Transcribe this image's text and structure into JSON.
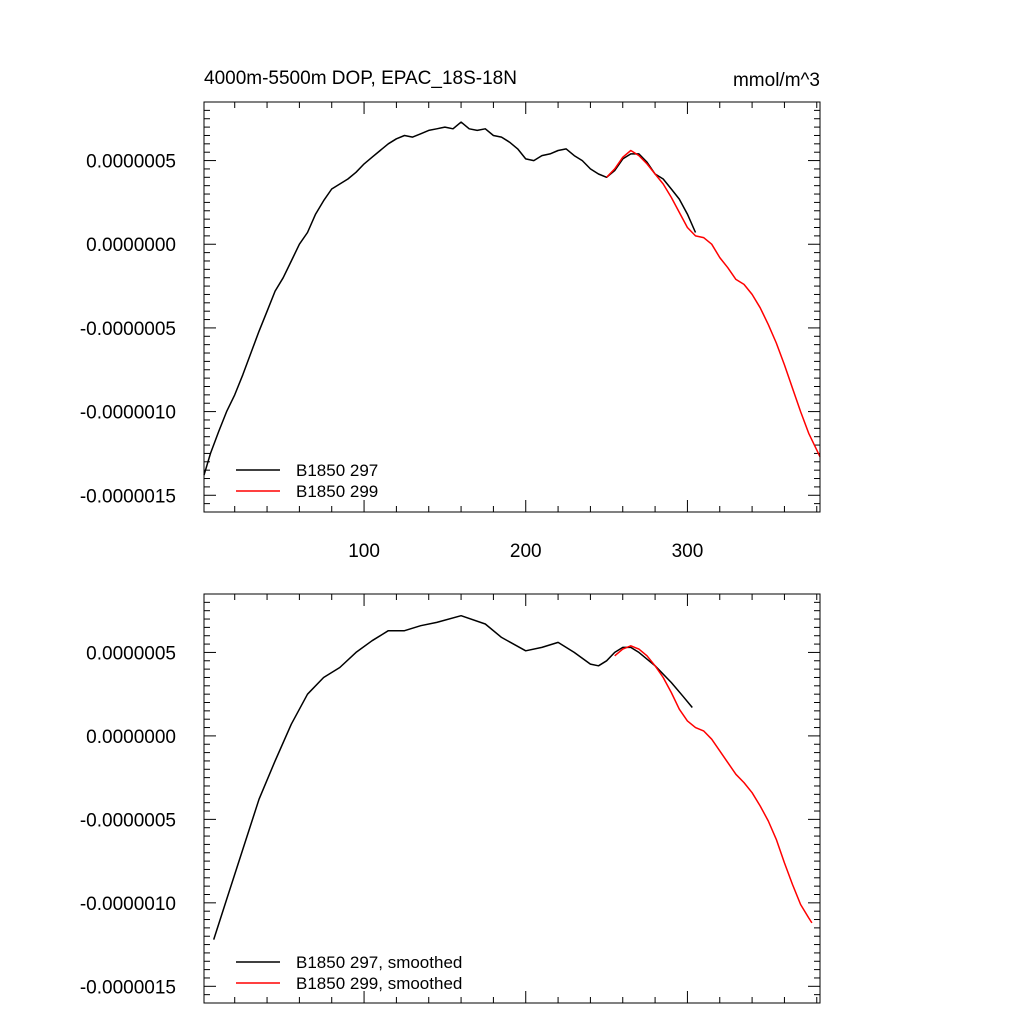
{
  "chart_data": [
    {
      "type": "line",
      "title": "4000m-5500m DOP, EPAC_18S-18N",
      "units": "mmol/m^3",
      "xlim": [
        1,
        382
      ],
      "ylim": [
        -1.6e-06,
        8.5e-07
      ],
      "xticks": [
        100,
        200,
        300
      ],
      "xtick_labels": [
        "100",
        "200",
        "300"
      ],
      "yticks": [
        5e-07,
        0,
        -5e-07,
        -1e-06,
        -1.5e-06
      ],
      "ytick_labels": [
        "0.0000005",
        "0.0000000",
        "-0.0000005",
        "-0.0000010",
        "-0.0000015"
      ],
      "legend_position": "bottom-left",
      "series": [
        {
          "name": "B1850 297",
          "color": "#000000",
          "x": [
            1,
            5,
            10,
            15,
            20,
            25,
            30,
            35,
            40,
            45,
            50,
            55,
            60,
            65,
            70,
            75,
            80,
            85,
            90,
            95,
            100,
            105,
            110,
            115,
            120,
            125,
            130,
            135,
            140,
            145,
            150,
            155,
            160,
            165,
            170,
            175,
            180,
            185,
            190,
            195,
            200,
            205,
            210,
            215,
            220,
            225,
            230,
            235,
            240,
            245,
            250,
            255,
            260,
            265,
            270,
            275,
            280,
            285,
            290,
            295,
            300,
            305
          ],
          "y": [
            -1.38e-06,
            -1.25e-06,
            -1.12e-06,
            -1e-06,
            -9e-07,
            -7.8e-07,
            -6.5e-07,
            -5.2e-07,
            -4e-07,
            -2.8e-07,
            -2e-07,
            -1e-07,
            0.0,
            7e-08,
            1.8e-07,
            2.6e-07,
            3.3e-07,
            3.6e-07,
            3.9e-07,
            4.3e-07,
            4.8e-07,
            5.2e-07,
            5.6e-07,
            6e-07,
            6.3e-07,
            6.5e-07,
            6.4e-07,
            6.6e-07,
            6.8e-07,
            6.9e-07,
            7e-07,
            6.9e-07,
            7.3e-07,
            6.9e-07,
            6.8e-07,
            6.9e-07,
            6.5e-07,
            6.4e-07,
            6.1e-07,
            5.7e-07,
            5.1e-07,
            5e-07,
            5.3e-07,
            5.4e-07,
            5.6e-07,
            5.7e-07,
            5.3e-07,
            5e-07,
            4.5e-07,
            4.2e-07,
            4e-07,
            4.4e-07,
            5.1e-07,
            5.4e-07,
            5.4e-07,
            4.9e-07,
            4.2e-07,
            3.9e-07,
            3.3e-07,
            2.7e-07,
            1.8e-07,
            7e-08
          ]
        },
        {
          "name": "B1850 299",
          "color": "#ff0000",
          "x": [
            250,
            255,
            260,
            265,
            270,
            275,
            280,
            285,
            290,
            295,
            300,
            305,
            310,
            315,
            320,
            325,
            330,
            335,
            340,
            345,
            350,
            355,
            360,
            365,
            370,
            375,
            380,
            382
          ],
          "y": [
            4e-07,
            4.5e-07,
            5.2e-07,
            5.6e-07,
            5.3e-07,
            4.8e-07,
            4.2e-07,
            3.6e-07,
            2.8e-07,
            1.9e-07,
            1e-07,
            5e-08,
            4e-08,
            0.0,
            -8e-08,
            -1.4e-07,
            -2.1e-07,
            -2.4e-07,
            -3e-07,
            -3.8e-07,
            -4.8e-07,
            -5.9e-07,
            -7.2e-07,
            -8.6e-07,
            -1e-06,
            -1.13e-06,
            -1.23e-06,
            -1.27e-06
          ]
        }
      ]
    },
    {
      "type": "line",
      "title": "",
      "xlim": [
        1,
        382
      ],
      "ylim": [
        -1.6e-06,
        8.5e-07
      ],
      "xticks": [
        100,
        200,
        300
      ],
      "xtick_labels": [],
      "yticks": [
        5e-07,
        0,
        -5e-07,
        -1e-06,
        -1.5e-06
      ],
      "ytick_labels": [
        "0.0000005",
        "0.0000000",
        "-0.0000005",
        "-0.0000010",
        "-0.0000015"
      ],
      "legend_position": "bottom-left",
      "series": [
        {
          "name": "B1850 297, smoothed",
          "color": "#000000",
          "x": [
            7,
            15,
            25,
            35,
            45,
            55,
            65,
            75,
            85,
            95,
            105,
            115,
            125,
            135,
            145,
            160,
            175,
            185,
            200,
            210,
            220,
            230,
            240,
            245,
            250,
            255,
            260,
            265,
            270,
            280,
            290,
            297,
            303
          ],
          "y": [
            -1.22e-06,
            -9.8e-07,
            -6.8e-07,
            -3.8e-07,
            -1.5e-07,
            7e-08,
            2.5e-07,
            3.5e-07,
            4.1e-07,
            5e-07,
            5.7e-07,
            6.3e-07,
            6.3e-07,
            6.6e-07,
            6.8e-07,
            7.2e-07,
            6.7e-07,
            5.9e-07,
            5.1e-07,
            5.3e-07,
            5.6e-07,
            5e-07,
            4.3e-07,
            4.2e-07,
            4.5e-07,
            5e-07,
            5.3e-07,
            5.3e-07,
            5e-07,
            4.2e-07,
            3.2e-07,
            2.4e-07,
            1.7e-07
          ]
        },
        {
          "name": "B1850 299, smoothed",
          "color": "#ff0000",
          "x": [
            255,
            260,
            265,
            270,
            275,
            280,
            285,
            290,
            295,
            300,
            305,
            310,
            315,
            320,
            325,
            330,
            335,
            340,
            345,
            350,
            355,
            360,
            365,
            370,
            375,
            377
          ],
          "y": [
            4.8e-07,
            5.2e-07,
            5.4e-07,
            5.2e-07,
            4.8e-07,
            4.2e-07,
            3.5e-07,
            2.6e-07,
            1.6e-07,
            9e-08,
            5e-08,
            3e-08,
            -2e-08,
            -9e-08,
            -1.6e-07,
            -2.3e-07,
            -2.8e-07,
            -3.4e-07,
            -4.2e-07,
            -5.1e-07,
            -6.2e-07,
            -7.6e-07,
            -8.9e-07,
            -1.01e-06,
            -1.09e-06,
            -1.12e-06
          ]
        }
      ]
    }
  ]
}
